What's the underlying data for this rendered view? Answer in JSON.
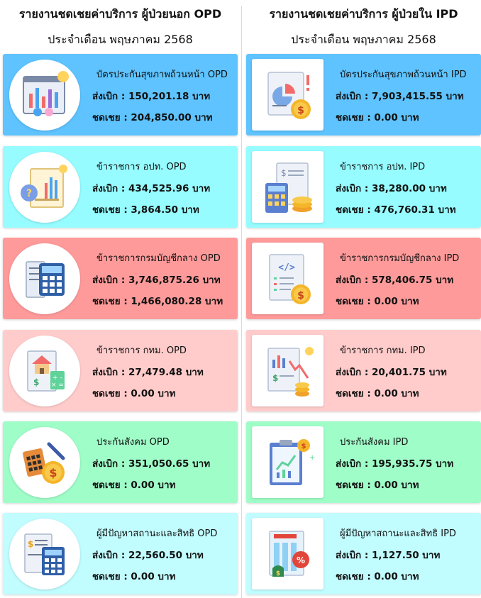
{
  "opd": {
    "title": "รายงานชดเชยค่าบริการ ผู้ป่วยนอก OPD",
    "subtitle": "ประจำเดือน พฤษภาคม 2568",
    "cards": [
      {
        "name": "บัตรประกันสุขภาพถ้วนหน้า OPD",
        "claim": "ส่งเบิก : 150,201.18 บาท",
        "comp": "ชดเชย : 204,850.00 บาท",
        "color": "#5ec3ff",
        "icon": "dashboard-report-icon"
      },
      {
        "name": "ข้าราชการ อปท. OPD",
        "claim": "ส่งเบิก : 434,525.96 บาท",
        "comp": "ชดเชย : 3,864.50 บาท",
        "color": "#96fcff",
        "icon": "question-report-icon"
      },
      {
        "name": "ข้าราชการกรมบัญชีกลาง OPD",
        "claim": "ส่งเบิก : 3,746,875.26 บาท",
        "comp": "ชดเชย : 1,466,080.28 บาท",
        "color": "#ff9a9a",
        "icon": "calculator-icon"
      },
      {
        "name": "ข้าราชการ กทม. OPD",
        "claim": "ส่งเบิก : 27,479.48 บาท",
        "comp": "ชดเชย : 0.00 บาท",
        "color": "#ffcccb",
        "icon": "house-calculator-icon"
      },
      {
        "name": "ประกันสังคม OPD",
        "claim": "ส่งเบิก : 351,050.65 บาท",
        "comp": "ชดเชย : 0.00 บาท",
        "color": "#9ffdc8",
        "icon": "calculator-coin-icon"
      },
      {
        "name": "ผู้มีปัญหาสถานะและสิทธิ OPD",
        "claim": "ส่งเบิก : 22,560.50 บาท",
        "comp": "ชดเชย : 0.00 บาท",
        "color": "#c1fcff",
        "icon": "invoice-calculator-icon"
      }
    ]
  },
  "ipd": {
    "title": "รายงานชดเชยค่าบริการ ผู้ป่วยใน IPD",
    "subtitle": "ประจำเดือน พฤษภาคม 2568",
    "cards": [
      {
        "name": "บัตรประกันสุขภาพถ้วนหน้า IPD",
        "claim": "ส่งเบิก : 7,903,415.55 บาท",
        "comp": "ชดเชย : 0.00 บาท",
        "color": "#5ec3ff",
        "icon": "pie-chart-coin-icon"
      },
      {
        "name": "ข้าราชการ อปท. IPD",
        "claim": "ส่งเบิก : 38,280.00 บาท",
        "comp": "ชดเชย : 476,760.31 บาท",
        "color": "#96fcff",
        "icon": "calculator-coins-icon"
      },
      {
        "name": "ข้าราชการกรมบัญชีกลาง IPD",
        "claim": "ส่งเบิก : 578,406.75 บาท",
        "comp": "ชดเชย : 0.00 บาท",
        "color": "#ff9a9a",
        "icon": "code-document-coin-icon"
      },
      {
        "name": "ข้าราชการ กทม. IPD",
        "claim": "ส่งเบิก : 20,401.75 บาท",
        "comp": "ชดเชย : 0.00 บาท",
        "color": "#ffcccb",
        "icon": "falling-chart-coins-icon"
      },
      {
        "name": "ประกันสังคม IPD",
        "claim": "ส่งเบิก : 195,935.75 บาท",
        "comp": "ชดเชย : 0.00 บาท",
        "color": "#9ffdc8",
        "icon": "clipboard-chart-icon"
      },
      {
        "name": "ผู้มีปัญหาสถานะและสิทธิ IPD",
        "claim": "ส่งเบิก : 1,127.50 บาท",
        "comp": "ชดเชย : 0.00 บาท",
        "color": "#c1fcff",
        "icon": "document-percent-icon"
      }
    ]
  }
}
